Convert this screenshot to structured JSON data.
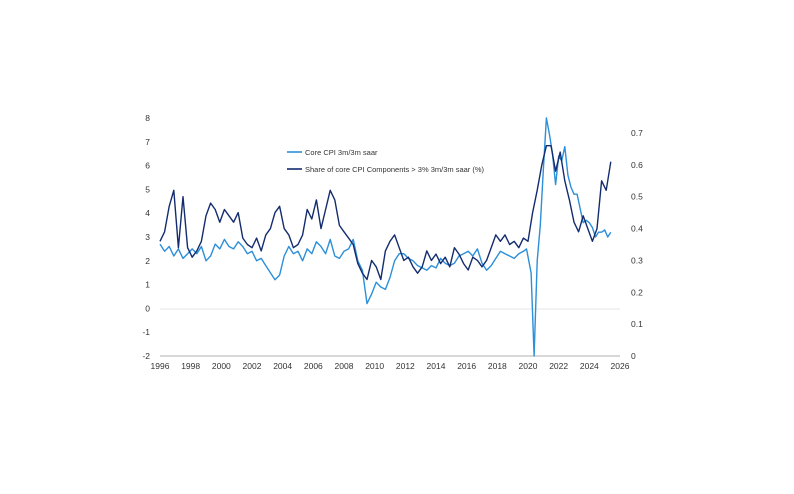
{
  "chart_data": {
    "type": "line",
    "title": "",
    "xlabel": "",
    "ylabel": "",
    "xlim": [
      1996,
      2026
    ],
    "x_ticks": [
      "1996",
      "1998",
      "2000",
      "2002",
      "2004",
      "2006",
      "2008",
      "2010",
      "2012",
      "2014",
      "2016",
      "2018",
      "2020",
      "2022",
      "2024",
      "2026"
    ],
    "y_left": {
      "lim": [
        -2,
        8
      ],
      "ticks": [
        "-2",
        "-1",
        "0",
        "1",
        "2",
        "3",
        "4",
        "5",
        "6",
        "7",
        "8"
      ]
    },
    "y_right": {
      "lim": [
        0,
        0.75
      ],
      "ticks": [
        "0",
        "0.1",
        "0.2",
        "0.3",
        "0.4",
        "0.5",
        "0.6",
        "0.7"
      ]
    },
    "grid": false,
    "legend_position": "top-center",
    "series": [
      {
        "name": "Core CPI 3m/3m saar",
        "axis": "left",
        "color": "#2b8fd9",
        "x": [
          1996.0,
          1996.3,
          1996.6,
          1996.9,
          1997.2,
          1997.5,
          1997.8,
          1998.1,
          1998.4,
          1998.7,
          1999.0,
          1999.3,
          1999.6,
          1999.9,
          2000.2,
          2000.5,
          2000.8,
          2001.1,
          2001.4,
          2001.7,
          2002.0,
          2002.3,
          2002.6,
          2002.9,
          2003.2,
          2003.5,
          2003.8,
          2004.1,
          2004.4,
          2004.7,
          2005.0,
          2005.3,
          2005.6,
          2005.9,
          2006.2,
          2006.5,
          2006.8,
          2007.1,
          2007.4,
          2007.7,
          2008.0,
          2008.3,
          2008.6,
          2008.9,
          2009.2,
          2009.5,
          2009.8,
          2010.1,
          2010.4,
          2010.7,
          2011.0,
          2011.3,
          2011.6,
          2011.9,
          2012.2,
          2012.5,
          2012.8,
          2013.1,
          2013.4,
          2013.7,
          2014.0,
          2014.3,
          2014.6,
          2014.9,
          2015.2,
          2015.5,
          2015.8,
          2016.1,
          2016.4,
          2016.7,
          2017.0,
          2017.3,
          2017.6,
          2017.9,
          2018.2,
          2018.5,
          2018.8,
          2019.1,
          2019.4,
          2019.7,
          2019.9,
          2020.2,
          2020.4,
          2020.6,
          2020.8,
          2021.0,
          2021.2,
          2021.4,
          2021.6,
          2021.8,
          2022.0,
          2022.2,
          2022.4,
          2022.6,
          2022.8,
          2023.0,
          2023.2,
          2023.4,
          2023.6,
          2023.8,
          2024.0,
          2024.2,
          2024.4,
          2024.6,
          2024.8,
          2025.0,
          2025.2,
          2025.4
        ],
        "values": [
          2.7,
          2.4,
          2.6,
          2.2,
          2.5,
          2.1,
          2.3,
          2.5,
          2.3,
          2.6,
          2.0,
          2.2,
          2.7,
          2.5,
          2.9,
          2.6,
          2.5,
          2.8,
          2.6,
          2.3,
          2.4,
          2.0,
          2.1,
          1.8,
          1.5,
          1.2,
          1.4,
          2.2,
          2.6,
          2.3,
          2.4,
          2.0,
          2.5,
          2.3,
          2.8,
          2.6,
          2.3,
          2.9,
          2.2,
          2.1,
          2.4,
          2.5,
          2.9,
          2.0,
          1.6,
          0.2,
          0.6,
          1.1,
          0.9,
          0.8,
          1.3,
          2.0,
          2.3,
          2.3,
          2.1,
          2.0,
          1.8,
          1.7,
          1.6,
          1.8,
          1.7,
          2.1,
          1.9,
          1.8,
          1.9,
          2.2,
          2.3,
          2.4,
          2.2,
          2.5,
          1.9,
          1.6,
          1.8,
          2.1,
          2.4,
          2.3,
          2.2,
          2.1,
          2.3,
          2.4,
          2.5,
          1.5,
          -2.0,
          2.0,
          3.5,
          5.8,
          8.0,
          7.3,
          6.5,
          5.2,
          6.4,
          6.2,
          6.8,
          5.6,
          5.1,
          4.8,
          4.8,
          4.2,
          3.6,
          3.7,
          3.6,
          3.4,
          3.0,
          3.2,
          3.2,
          3.3,
          3.0,
          3.2
        ]
      },
      {
        "name": "Share of core CPI Components > 3% 3m/3m saar (%)",
        "axis": "right",
        "color": "#142c6e",
        "x": [
          1996.0,
          1996.3,
          1996.6,
          1996.9,
          1997.2,
          1997.5,
          1997.8,
          1998.1,
          1998.4,
          1998.7,
          1999.0,
          1999.3,
          1999.6,
          1999.9,
          2000.2,
          2000.5,
          2000.8,
          2001.1,
          2001.4,
          2001.7,
          2002.0,
          2002.3,
          2002.6,
          2002.9,
          2003.2,
          2003.5,
          2003.8,
          2004.1,
          2004.4,
          2004.7,
          2005.0,
          2005.3,
          2005.6,
          2005.9,
          2006.2,
          2006.5,
          2006.8,
          2007.1,
          2007.4,
          2007.7,
          2008.0,
          2008.3,
          2008.6,
          2008.9,
          2009.2,
          2009.5,
          2009.8,
          2010.1,
          2010.4,
          2010.7,
          2011.0,
          2011.3,
          2011.6,
          2011.9,
          2012.2,
          2012.5,
          2012.8,
          2013.1,
          2013.4,
          2013.7,
          2014.0,
          2014.3,
          2014.6,
          2014.9,
          2015.2,
          2015.5,
          2015.8,
          2016.1,
          2016.4,
          2016.7,
          2017.0,
          2017.3,
          2017.6,
          2017.9,
          2018.2,
          2018.5,
          2018.8,
          2019.1,
          2019.4,
          2019.7,
          2020.0,
          2020.3,
          2020.6,
          2020.9,
          2021.2,
          2021.5,
          2021.8,
          2022.1,
          2022.4,
          2022.7,
          2023.0,
          2023.3,
          2023.6,
          2023.9,
          2024.2,
          2024.5,
          2024.8,
          2025.1,
          2025.4
        ],
        "values": [
          0.36,
          0.39,
          0.47,
          0.52,
          0.34,
          0.5,
          0.34,
          0.31,
          0.33,
          0.36,
          0.44,
          0.48,
          0.46,
          0.42,
          0.46,
          0.44,
          0.42,
          0.45,
          0.37,
          0.35,
          0.34,
          0.37,
          0.33,
          0.38,
          0.4,
          0.45,
          0.47,
          0.4,
          0.38,
          0.34,
          0.35,
          0.38,
          0.46,
          0.43,
          0.49,
          0.4,
          0.46,
          0.52,
          0.49,
          0.41,
          0.39,
          0.37,
          0.35,
          0.29,
          0.26,
          0.24,
          0.3,
          0.28,
          0.24,
          0.33,
          0.36,
          0.38,
          0.34,
          0.3,
          0.31,
          0.28,
          0.26,
          0.28,
          0.33,
          0.3,
          0.32,
          0.29,
          0.31,
          0.28,
          0.34,
          0.32,
          0.29,
          0.27,
          0.31,
          0.3,
          0.28,
          0.3,
          0.34,
          0.38,
          0.36,
          0.38,
          0.35,
          0.36,
          0.34,
          0.37,
          0.36,
          0.45,
          0.52,
          0.6,
          0.66,
          0.66,
          0.58,
          0.64,
          0.55,
          0.49,
          0.42,
          0.39,
          0.44,
          0.4,
          0.36,
          0.4,
          0.55,
          0.52,
          0.61
        ]
      }
    ]
  }
}
